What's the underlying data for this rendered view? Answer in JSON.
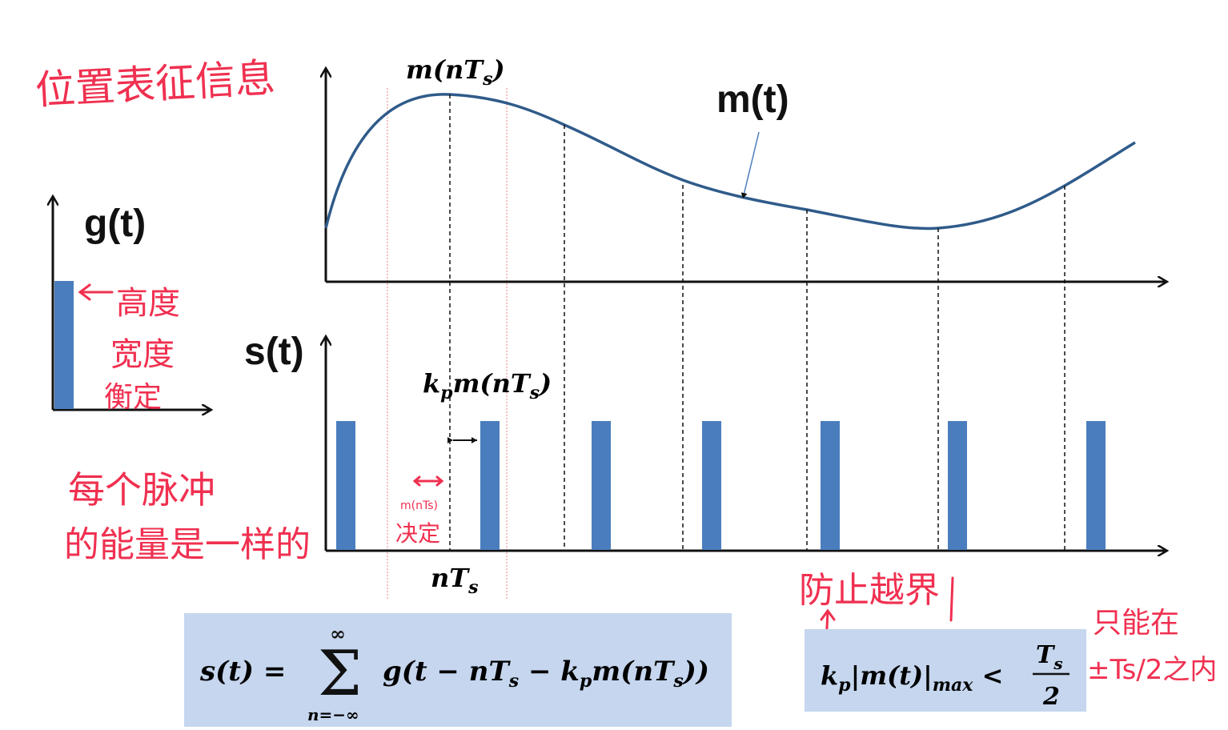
{
  "labels": {
    "m_of_t": "m(t)",
    "g_of_t": "g(t)",
    "s_of_t": "s(t)",
    "m_nTs": "m(nTs)",
    "kp_m_nTs": "kpm(nTs)",
    "nTs": "nTs"
  },
  "annotations": {
    "position_info": "位置表征信息",
    "height": "高度",
    "width": "宽度",
    "constant": "衡定",
    "same_energy_1": "每个脉冲",
    "same_energy_2": "的能量是一样的",
    "small_m": "m(nTs)",
    "small_shift": "决定",
    "prevent_overflow": "防止越界",
    "only_within_1": "只能在",
    "only_within_2": "±Ts/2之内"
  },
  "formulas": {
    "sum": "s(t) = Σ g(t − nTs − kp m(nTs)), n = −∞ … ∞",
    "condition": "kp|m(t)|max < Ts/2"
  },
  "colors": {
    "curve": "#2f5b8a",
    "pulse": "#4a7dbd",
    "annotation": "#f03050",
    "box": "#c5d6ee"
  }
}
